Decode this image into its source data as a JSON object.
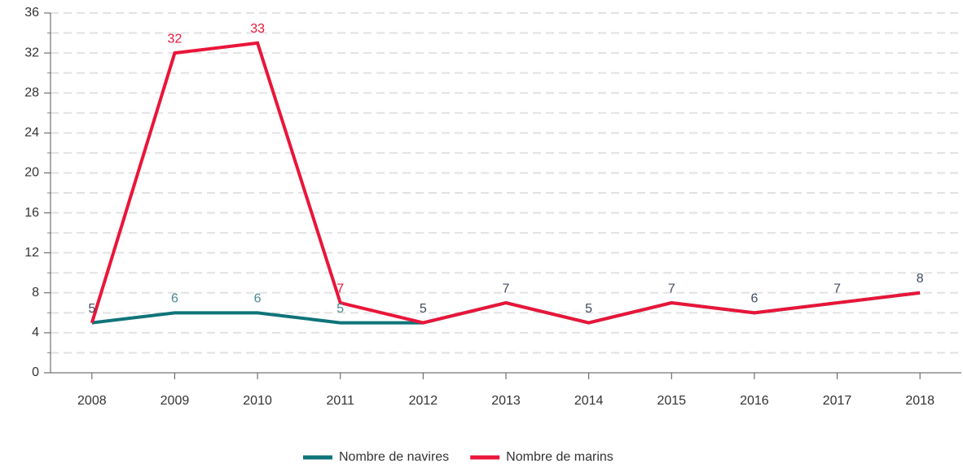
{
  "chart_data": {
    "type": "line",
    "categories": [
      "2008",
      "2009",
      "2010",
      "2011",
      "2012",
      "2013",
      "2014",
      "2015",
      "2016",
      "2017",
      "2018"
    ],
    "series": [
      {
        "name": "Nombre de navires",
        "color": "#0f7479",
        "values": [
          5,
          6,
          6,
          5,
          5,
          7,
          5,
          7,
          6,
          7,
          8
        ]
      },
      {
        "name": "Nombre de marins",
        "color": "#ea1539",
        "values": [
          5,
          32,
          33,
          7,
          5,
          7,
          5,
          7,
          6,
          7,
          8
        ]
      }
    ],
    "ylim": [
      0,
      36
    ],
    "yticks": [
      0,
      4,
      8,
      12,
      16,
      20,
      24,
      28,
      32,
      36
    ],
    "grid": true,
    "legend": "bottom"
  }
}
